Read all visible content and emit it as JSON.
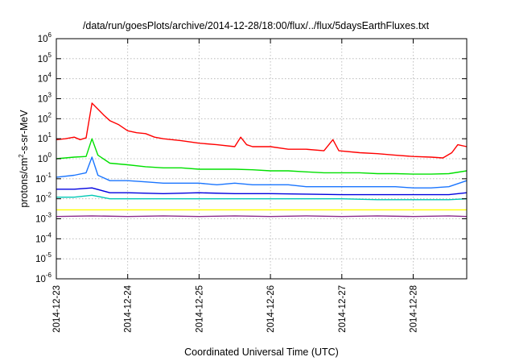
{
  "chart_data": {
    "type": "line",
    "title": "/data/run/goesPlots/archive/2014-12-28/18:00/flux/../flux/5daysEarthFluxes.txt",
    "xlabel": "Coordinated Universal Time (UTC)",
    "ylabel_parts": {
      "base": "protons/cm",
      "exp": "2",
      "rest": "-s-sr-MeV"
    },
    "y_scale": "log",
    "ylim": [
      1e-06,
      1000000.0
    ],
    "y_ticks": [
      {
        "base": "10",
        "exp": "6"
      },
      {
        "base": "10",
        "exp": "5"
      },
      {
        "base": "10",
        "exp": "4"
      },
      {
        "base": "10",
        "exp": "3"
      },
      {
        "base": "10",
        "exp": "2"
      },
      {
        "base": "10",
        "exp": "1"
      },
      {
        "base": "10",
        "exp": "0"
      },
      {
        "base": "10",
        "exp": "-1"
      },
      {
        "base": "10",
        "exp": "-2"
      },
      {
        "base": "10",
        "exp": "-3"
      },
      {
        "base": "10",
        "exp": "-4"
      },
      {
        "base": "10",
        "exp": "-5"
      },
      {
        "base": "10",
        "exp": "-6"
      }
    ],
    "xlim": [
      "2014-12-23T00:00",
      "2014-12-28T18:00"
    ],
    "x_ticks": [
      "2014-12-23",
      "2014-12-24",
      "2014-12-25",
      "2014-12-26",
      "2014-12-27",
      "2014-12-28"
    ],
    "grid": true,
    "series": [
      {
        "color": "#ff0000",
        "points": [
          [
            "2014-12-23T00:00",
            9
          ],
          [
            "2014-12-23T03:00",
            10
          ],
          [
            "2014-12-23T06:00",
            12
          ],
          [
            "2014-12-23T08:00",
            9
          ],
          [
            "2014-12-23T10:00",
            11
          ],
          [
            "2014-12-23T12:00",
            600
          ],
          [
            "2014-12-23T14:00",
            300
          ],
          [
            "2014-12-23T16:00",
            150
          ],
          [
            "2014-12-23T18:00",
            80
          ],
          [
            "2014-12-23T21:00",
            50
          ],
          [
            "2014-12-24T00:00",
            25
          ],
          [
            "2014-12-24T03:00",
            20
          ],
          [
            "2014-12-24T06:00",
            18
          ],
          [
            "2014-12-24T09:00",
            12
          ],
          [
            "2014-12-24T12:00",
            10
          ],
          [
            "2014-12-24T18:00",
            8
          ],
          [
            "2014-12-25T00:00",
            6
          ],
          [
            "2014-12-25T06:00",
            5
          ],
          [
            "2014-12-25T12:00",
            4
          ],
          [
            "2014-12-25T14:00",
            12
          ],
          [
            "2014-12-25T16:00",
            5
          ],
          [
            "2014-12-25T18:00",
            4
          ],
          [
            "2014-12-26T00:00",
            4
          ],
          [
            "2014-12-26T06:00",
            3
          ],
          [
            "2014-12-26T12:00",
            3
          ],
          [
            "2014-12-26T18:00",
            2.5
          ],
          [
            "2014-12-26T21:00",
            9
          ],
          [
            "2014-12-26T23:00",
            2.5
          ],
          [
            "2014-12-27T06:00",
            2
          ],
          [
            "2014-12-27T12:00",
            1.8
          ],
          [
            "2014-12-27T18:00",
            1.5
          ],
          [
            "2014-12-28T00:00",
            1.3
          ],
          [
            "2014-12-28T06:00",
            1.2
          ],
          [
            "2014-12-28T10:00",
            1.1
          ],
          [
            "2014-12-28T13:00",
            2
          ],
          [
            "2014-12-28T15:00",
            5
          ],
          [
            "2014-12-28T18:00",
            4
          ]
        ]
      },
      {
        "color": "#00e000",
        "points": [
          [
            "2014-12-23T00:00",
            1.0
          ],
          [
            "2014-12-23T06:00",
            1.2
          ],
          [
            "2014-12-23T10:00",
            1.3
          ],
          [
            "2014-12-23T12:00",
            10
          ],
          [
            "2014-12-23T14:00",
            1.5
          ],
          [
            "2014-12-23T18:00",
            0.6
          ],
          [
            "2014-12-24T00:00",
            0.5
          ],
          [
            "2014-12-24T06:00",
            0.4
          ],
          [
            "2014-12-24T12:00",
            0.35
          ],
          [
            "2014-12-24T18:00",
            0.35
          ],
          [
            "2014-12-25T00:00",
            0.3
          ],
          [
            "2014-12-25T06:00",
            0.3
          ],
          [
            "2014-12-25T12:00",
            0.3
          ],
          [
            "2014-12-25T18:00",
            0.28
          ],
          [
            "2014-12-26T00:00",
            0.25
          ],
          [
            "2014-12-26T06:00",
            0.25
          ],
          [
            "2014-12-26T12:00",
            0.22
          ],
          [
            "2014-12-26T18:00",
            0.2
          ],
          [
            "2014-12-27T00:00",
            0.2
          ],
          [
            "2014-12-27T06:00",
            0.2
          ],
          [
            "2014-12-27T12:00",
            0.18
          ],
          [
            "2014-12-27T18:00",
            0.18
          ],
          [
            "2014-12-28T00:00",
            0.17
          ],
          [
            "2014-12-28T06:00",
            0.17
          ],
          [
            "2014-12-28T12:00",
            0.18
          ],
          [
            "2014-12-28T18:00",
            0.25
          ]
        ]
      },
      {
        "color": "#1a75ff",
        "points": [
          [
            "2014-12-23T00:00",
            0.12
          ],
          [
            "2014-12-23T06:00",
            0.15
          ],
          [
            "2014-12-23T10:00",
            0.2
          ],
          [
            "2014-12-23T12:00",
            1.2
          ],
          [
            "2014-12-23T14:00",
            0.15
          ],
          [
            "2014-12-23T18:00",
            0.08
          ],
          [
            "2014-12-24T00:00",
            0.08
          ],
          [
            "2014-12-24T06:00",
            0.07
          ],
          [
            "2014-12-24T12:00",
            0.06
          ],
          [
            "2014-12-24T18:00",
            0.06
          ],
          [
            "2014-12-25T00:00",
            0.06
          ],
          [
            "2014-12-25T06:00",
            0.05
          ],
          [
            "2014-12-25T12:00",
            0.06
          ],
          [
            "2014-12-25T18:00",
            0.05
          ],
          [
            "2014-12-26T00:00",
            0.05
          ],
          [
            "2014-12-26T06:00",
            0.05
          ],
          [
            "2014-12-26T12:00",
            0.04
          ],
          [
            "2014-12-26T18:00",
            0.04
          ],
          [
            "2014-12-27T00:00",
            0.04
          ],
          [
            "2014-12-27T06:00",
            0.04
          ],
          [
            "2014-12-27T12:00",
            0.04
          ],
          [
            "2014-12-27T18:00",
            0.04
          ],
          [
            "2014-12-28T00:00",
            0.035
          ],
          [
            "2014-12-28T06:00",
            0.035
          ],
          [
            "2014-12-28T12:00",
            0.04
          ],
          [
            "2014-12-28T18:00",
            0.08
          ]
        ]
      },
      {
        "color": "#0000e0",
        "points": [
          [
            "2014-12-23T00:00",
            0.03
          ],
          [
            "2014-12-23T06:00",
            0.03
          ],
          [
            "2014-12-23T12:00",
            0.035
          ],
          [
            "2014-12-23T18:00",
            0.02
          ],
          [
            "2014-12-24T00:00",
            0.02
          ],
          [
            "2014-12-24T12:00",
            0.018
          ],
          [
            "2014-12-25T00:00",
            0.02
          ],
          [
            "2014-12-25T12:00",
            0.018
          ],
          [
            "2014-12-26T00:00",
            0.018
          ],
          [
            "2014-12-26T12:00",
            0.017
          ],
          [
            "2014-12-27T00:00",
            0.016
          ],
          [
            "2014-12-27T12:00",
            0.016
          ],
          [
            "2014-12-28T00:00",
            0.016
          ],
          [
            "2014-12-28T12:00",
            0.016
          ],
          [
            "2014-12-28T18:00",
            0.02
          ]
        ]
      },
      {
        "color": "#00c8b4",
        "points": [
          [
            "2014-12-23T00:00",
            0.012
          ],
          [
            "2014-12-23T06:00",
            0.012
          ],
          [
            "2014-12-23T12:00",
            0.015
          ],
          [
            "2014-12-23T18:00",
            0.01
          ],
          [
            "2014-12-24T00:00",
            0.01
          ],
          [
            "2014-12-24T12:00",
            0.01
          ],
          [
            "2014-12-25T00:00",
            0.01
          ],
          [
            "2014-12-25T12:00",
            0.01
          ],
          [
            "2014-12-26T00:00",
            0.01
          ],
          [
            "2014-12-26T12:00",
            0.01
          ],
          [
            "2014-12-27T00:00",
            0.01
          ],
          [
            "2014-12-27T12:00",
            0.009
          ],
          [
            "2014-12-28T00:00",
            0.009
          ],
          [
            "2014-12-28T12:00",
            0.009
          ],
          [
            "2014-12-28T18:00",
            0.01
          ]
        ]
      },
      {
        "color": "#ffff00",
        "points": [
          [
            "2014-12-23T00:00",
            0.0028
          ],
          [
            "2014-12-24T00:00",
            0.0028
          ],
          [
            "2014-12-25T00:00",
            0.0028
          ],
          [
            "2014-12-26T00:00",
            0.0028
          ],
          [
            "2014-12-27T00:00",
            0.0028
          ],
          [
            "2014-12-28T00:00",
            0.0028
          ],
          [
            "2014-12-28T18:00",
            0.0028
          ]
        ]
      },
      {
        "color": "#8b2a8b",
        "points": [
          [
            "2014-12-23T00:00",
            0.0013
          ],
          [
            "2014-12-23T12:00",
            0.0014
          ],
          [
            "2014-12-24T00:00",
            0.0013
          ],
          [
            "2014-12-24T12:00",
            0.0014
          ],
          [
            "2014-12-25T00:00",
            0.0013
          ],
          [
            "2014-12-25T12:00",
            0.0014
          ],
          [
            "2014-12-26T00:00",
            0.0013
          ],
          [
            "2014-12-26T12:00",
            0.0014
          ],
          [
            "2014-12-27T00:00",
            0.0013
          ],
          [
            "2014-12-27T12:00",
            0.0014
          ],
          [
            "2014-12-28T00:00",
            0.0013
          ],
          [
            "2014-12-28T12:00",
            0.0014
          ],
          [
            "2014-12-28T18:00",
            0.0013
          ]
        ]
      }
    ]
  }
}
